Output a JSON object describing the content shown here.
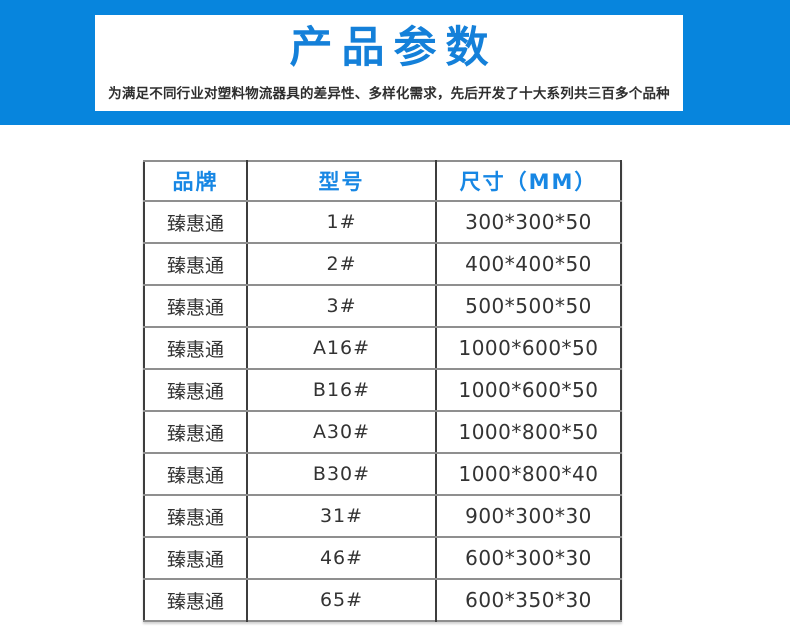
{
  "banner": {
    "title": "产品参数",
    "subtitle": "为满足不同行业对塑料物流器具的差异性、多样化需求，先后开发了十大系列共三百多个品种",
    "bg_color": "#0785dd",
    "title_color": "#1480d9",
    "card_bg_color": "#ffffff"
  },
  "table": {
    "header_color": "#1787e4",
    "headers": [
      "品牌",
      "型号",
      "尺寸（MM）"
    ],
    "rows": [
      {
        "brand": "臻惠通",
        "model": "1#",
        "size": "300*300*50"
      },
      {
        "brand": "臻惠通",
        "model": "2#",
        "size": "400*400*50"
      },
      {
        "brand": "臻惠通",
        "model": "3#",
        "size": "500*500*50"
      },
      {
        "brand": "臻惠通",
        "model": "A16#",
        "size": "1000*600*50"
      },
      {
        "brand": "臻惠通",
        "model": "B16#",
        "size": "1000*600*50"
      },
      {
        "brand": "臻惠通",
        "model": "A30#",
        "size": "1000*800*50"
      },
      {
        "brand": "臻惠通",
        "model": "B30#",
        "size": "1000*800*40"
      },
      {
        "brand": "臻惠通",
        "model": "31#",
        "size": "900*300*30"
      },
      {
        "brand": "臻惠通",
        "model": "46#",
        "size": "600*300*30"
      },
      {
        "brand": "臻惠通",
        "model": "65#",
        "size": "600*350*30"
      }
    ]
  }
}
